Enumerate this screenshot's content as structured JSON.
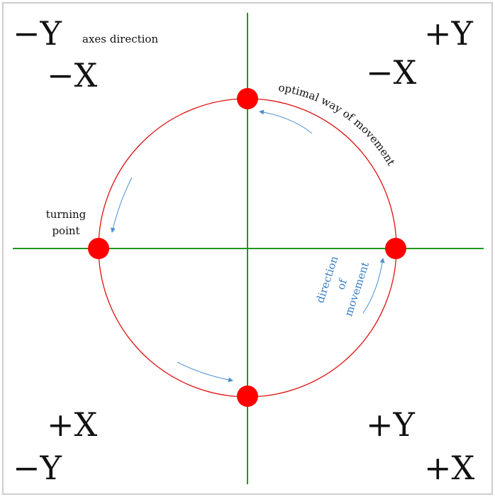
{
  "colors": {
    "axis": "#1e9a1e",
    "circle": "#e01010",
    "dot": "#ff0000",
    "arrow": "#4a8fd0",
    "direction_text": "#3a7fc8"
  },
  "labels": {
    "header": "axes direction",
    "turning_point_line1": "turning",
    "turning_point_line2": "point",
    "optimal_path": "optimal way of movement",
    "direction_line1": "direction",
    "direction_line2": "of",
    "direction_line3": "movement"
  },
  "quadrants": {
    "top_left": {
      "first": "−Y",
      "second": "−X"
    },
    "top_right": {
      "first": "+Y",
      "second": "−X"
    },
    "bottom_left": {
      "first": "+X",
      "second": "−Y"
    },
    "bottom_right": {
      "first": "+Y",
      "second": "+X"
    }
  }
}
